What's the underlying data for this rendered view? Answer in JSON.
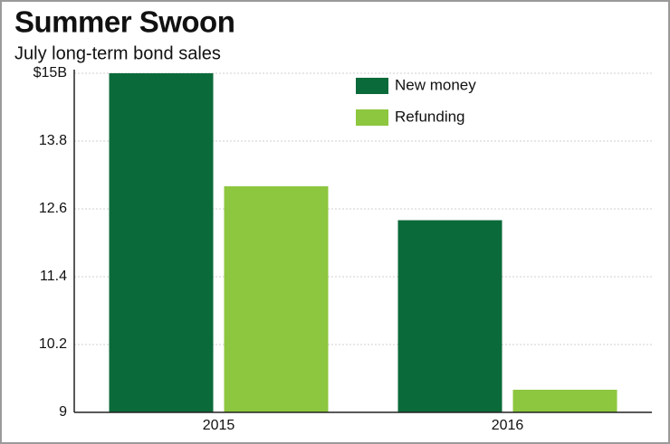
{
  "chart_data": {
    "type": "bar",
    "title": "Summer Swoon",
    "subtitle": "July long-term bond sales",
    "categories": [
      "2015",
      "2016"
    ],
    "series": [
      {
        "name": "New money",
        "color": "#0b6a3a",
        "values": [
          15,
          12.4
        ]
      },
      {
        "name": "Refunding",
        "color": "#8dc63f",
        "values": [
          13.0,
          9.4
        ]
      }
    ],
    "ylim": [
      9,
      15
    ],
    "yticks": [
      9,
      10.2,
      11.4,
      12.6,
      13.8,
      {
        "value": 15,
        "label": "$15B"
      }
    ],
    "grid": true
  }
}
